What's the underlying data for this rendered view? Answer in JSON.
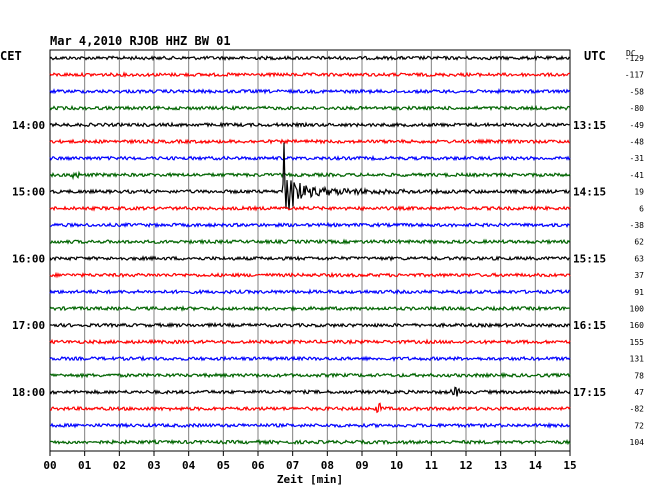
{
  "chart_data": {
    "type": "line",
    "title": "Mar 4,2010  RJOB HHZ BW 01",
    "left_zone": "CET",
    "right_zone": "UTC",
    "dc_header": "DC",
    "xlabel": "Zeit [min]",
    "x_ticks": [
      "00",
      "01",
      "02",
      "03",
      "04",
      "05",
      "06",
      "07",
      "08",
      "09",
      "10",
      "11",
      "12",
      "13",
      "14",
      "15"
    ],
    "xlim": [
      0,
      15
    ],
    "grid": true,
    "trace_colors": [
      "#000000",
      "#ff0000",
      "#0000ff",
      "#006400"
    ],
    "hour_labels_left": [
      "14:00",
      "15:00",
      "16:00",
      "17:00",
      "18:00"
    ],
    "hour_labels_right": [
      "13:15",
      "14:15",
      "15:15",
      "16:15",
      "17:15"
    ],
    "dc_offsets": [
      "-129",
      "-117",
      "-58",
      "-80",
      "-49",
      "-48",
      "-31",
      "-41",
      "19",
      "6",
      "-38",
      "62",
      "63",
      "37",
      "91",
      "100",
      "160",
      "155",
      "131",
      "78",
      "47",
      "-82",
      "72",
      "104"
    ],
    "events": [
      {
        "trace": 8,
        "minute": 6.7,
        "description": "earthquake onset"
      },
      {
        "trace": 20,
        "minute": 11.7,
        "description": "small burst"
      },
      {
        "trace": 21,
        "minute": 9.5,
        "description": "small burst"
      },
      {
        "trace": 7,
        "minute": 0.7,
        "description": "small burst"
      }
    ]
  }
}
